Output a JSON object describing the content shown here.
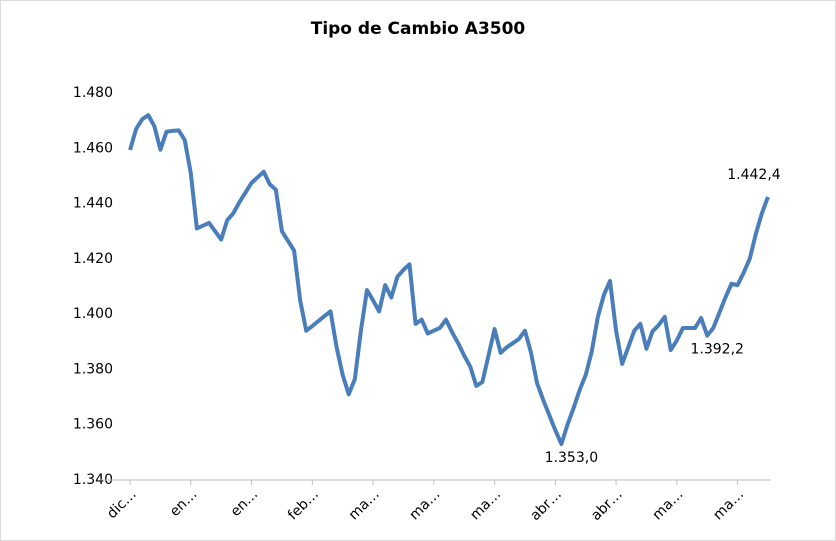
{
  "chart_data": {
    "type": "line",
    "title": "Tipo de Cambio A3500",
    "categories": [
      "dic…",
      null,
      null,
      null,
      null,
      null,
      null,
      null,
      null,
      null,
      "en…",
      null,
      null,
      null,
      null,
      null,
      null,
      null,
      null,
      null,
      "en…",
      null,
      null,
      null,
      null,
      null,
      null,
      null,
      null,
      null,
      "feb…",
      null,
      null,
      null,
      null,
      null,
      null,
      null,
      null,
      null,
      "ma…",
      null,
      null,
      null,
      null,
      null,
      null,
      null,
      null,
      null,
      "ma…",
      null,
      null,
      null,
      null,
      null,
      null,
      null,
      null,
      null,
      "ma…",
      null,
      null,
      null,
      null,
      null,
      null,
      null,
      null,
      null,
      "abr…",
      null,
      null,
      null,
      null,
      null,
      null,
      null,
      null,
      null,
      "abr…",
      null,
      null,
      null,
      null,
      null,
      null,
      null,
      null,
      null,
      "ma…",
      null,
      null,
      null,
      null,
      null,
      null,
      null,
      null,
      null,
      "ma…",
      null,
      null,
      null,
      null,
      null
    ],
    "values": [
      1459.4,
      1467,
      1470.5,
      1472,
      1468,
      1459.5,
      1466,
      1466.3,
      1466.5,
      1463,
      1451,
      1431,
      1432,
      1433,
      1430,
      1427,
      1434,
      1436.5,
      1440.5,
      1444,
      1447.5,
      1449.5,
      1451.5,
      1447,
      1445,
      1430,
      1426.5,
      1423,
      1405,
      1394,
      1395.7,
      1397.5,
      1399.3,
      1401,
      1388,
      1378,
      1371,
      1376.5,
      1394,
      1408.7,
      1405,
      1401,
      1410.5,
      1406,
      1413.5,
      1416,
      1418,
      1396.5,
      1398,
      1393,
      1394,
      1395,
      1398,
      1393.5,
      1389.5,
      1385,
      1381,
      1374,
      1375.5,
      1385,
      1394.6,
      1386,
      1388,
      1389.5,
      1391,
      1394,
      1386,
      1375,
      1369,
      1363.5,
      1358,
      1353.0,
      1360,
      1366,
      1372.5,
      1378,
      1386.5,
      1399,
      1407,
      1412,
      1394,
      1382,
      1388,
      1394,
      1396.5,
      1387.5,
      1393.8,
      1396,
      1399,
      1387,
      1390.5,
      1395,
      1395,
      1395,
      1398.6,
      1392.2,
      1395,
      1400.5,
      1406,
      1411,
      1410.5,
      1415,
      1420,
      1429,
      1436.5,
      1442.4
    ],
    "value_labels": [
      null,
      null,
      null,
      null,
      null,
      null,
      null,
      null,
      null,
      null,
      null,
      null,
      null,
      null,
      null,
      null,
      null,
      null,
      null,
      null,
      null,
      null,
      null,
      null,
      null,
      null,
      null,
      null,
      null,
      null,
      null,
      null,
      null,
      null,
      null,
      null,
      null,
      null,
      null,
      null,
      null,
      null,
      null,
      null,
      null,
      null,
      null,
      null,
      null,
      null,
      null,
      null,
      null,
      null,
      null,
      null,
      null,
      null,
      null,
      null,
      null,
      null,
      null,
      null,
      null,
      null,
      null,
      null,
      null,
      null,
      null,
      "1.353,0",
      null,
      null,
      null,
      null,
      null,
      null,
      null,
      null,
      null,
      null,
      null,
      null,
      null,
      null,
      null,
      null,
      null,
      null,
      null,
      null,
      null,
      null,
      null,
      "1.392,2",
      null,
      null,
      null,
      null,
      null,
      null,
      null,
      null,
      null,
      "1.442,4"
    ],
    "color": "#4a7ebb",
    "ylim": [
      1340,
      1480
    ],
    "yticks": [
      {
        "value": 1340,
        "label": "1.340"
      },
      {
        "value": 1360,
        "label": "1.360"
      },
      {
        "value": 1380,
        "label": "1.380"
      },
      {
        "value": 1400,
        "label": "1.400"
      },
      {
        "value": 1420,
        "label": "1.420"
      },
      {
        "value": 1440,
        "label": "1.440"
      },
      {
        "value": 1460,
        "label": "1.460"
      },
      {
        "value": 1480,
        "label": "1.480"
      }
    ],
    "grid": false
  }
}
